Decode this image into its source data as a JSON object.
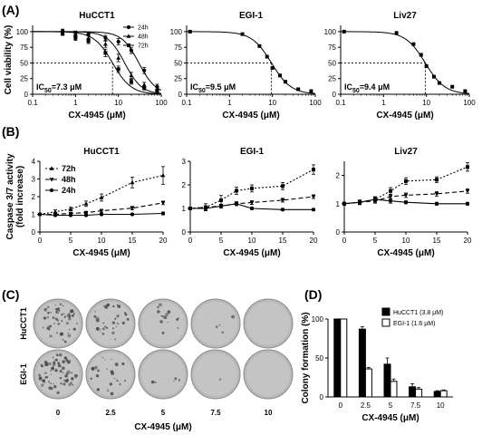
{
  "panels": {
    "A": "(A)",
    "B": "(B)",
    "C": "(C)",
    "D": "(D)"
  },
  "chart_data": [
    {
      "id": "A1",
      "type": "line",
      "title": "HuCCT1",
      "xlabel": "CX-4945 (μM)",
      "ylabel": "Cell viability (%)",
      "xscale": "log",
      "xlim": [
        0.1,
        100
      ],
      "ylim": [
        0,
        110
      ],
      "xticks": [
        {
          "v": 0.1,
          "t": "0.1"
        },
        {
          "v": 1,
          "t": "1"
        },
        {
          "v": 10,
          "t": "10"
        },
        {
          "v": 100,
          "t": "100"
        }
      ],
      "yticks": [
        0,
        25,
        50,
        75,
        100
      ],
      "annotation": {
        "pre": "IC",
        "sub": "50",
        "post": "=7.3 μM"
      },
      "ic50": 7.3,
      "legend": [
        "24h",
        "48h",
        "72h"
      ],
      "series": [
        {
          "name": "24h",
          "marker": "circle",
          "ic50": 30,
          "hill": 2.2,
          "x": [
            0.5,
            1,
            2,
            5,
            10,
            20,
            40,
            80
          ],
          "y": [
            101,
            98,
            96,
            90,
            84,
            70,
            38,
            12
          ],
          "err": [
            3,
            3,
            3,
            4,
            5,
            5,
            5,
            4
          ]
        },
        {
          "name": "48h",
          "marker": "tri",
          "ic50": 14,
          "hill": 2.2,
          "x": [
            0.5,
            1,
            2,
            5,
            10,
            20,
            40,
            80
          ],
          "y": [
            98,
            95,
            90,
            80,
            58,
            30,
            15,
            8
          ],
          "err": [
            3,
            4,
            4,
            5,
            6,
            5,
            4,
            3
          ]
        },
        {
          "name": "72h",
          "marker": "square",
          "ic50": 7.3,
          "hill": 2.0,
          "x": [
            0.5,
            1,
            2,
            5,
            10,
            20,
            40,
            80
          ],
          "y": [
            97,
            90,
            85,
            66,
            40,
            20,
            10,
            5
          ],
          "err": [
            3,
            4,
            4,
            6,
            5,
            4,
            3,
            2
          ]
        }
      ]
    },
    {
      "id": "A2",
      "type": "line",
      "title": "EGI-1",
      "xlabel": "CX-4945 (μM)",
      "ylabel": "",
      "xscale": "log",
      "xlim": [
        0.1,
        100
      ],
      "ylim": [
        0,
        110
      ],
      "xticks": [
        {
          "v": 0.1,
          "t": "0.1"
        },
        {
          "v": 1,
          "t": "1"
        },
        {
          "v": 10,
          "t": "10"
        },
        {
          "v": 100,
          "t": "100"
        }
      ],
      "yticks": [
        0,
        25,
        50,
        75,
        100
      ],
      "annotation": {
        "pre": "IC",
        "sub": "50",
        "post": "=9.5 μM"
      },
      "ic50": 9.5,
      "legend": [],
      "series": [
        {
          "name": "",
          "marker": "square",
          "ic50": 9.5,
          "hill": 1.9,
          "x": [
            0.12,
            2,
            5,
            7.5,
            10,
            15,
            20,
            40,
            80
          ],
          "y": [
            100,
            96,
            77,
            60,
            42,
            30,
            20,
            8,
            5
          ],
          "err": [
            0,
            0,
            0,
            0,
            0,
            0,
            0,
            0,
            0
          ]
        }
      ]
    },
    {
      "id": "A3",
      "type": "line",
      "title": "Liv27",
      "xlabel": "CX-4945 (μM)",
      "ylabel": "",
      "xscale": "log",
      "xlim": [
        0.1,
        100
      ],
      "ylim": [
        0,
        110
      ],
      "xticks": [
        {
          "v": 0.1,
          "t": "0.1"
        },
        {
          "v": 1,
          "t": "1"
        },
        {
          "v": 10,
          "t": "10"
        },
        {
          "v": 100,
          "t": "100"
        }
      ],
      "yticks": [
        0,
        25,
        50,
        75,
        100
      ],
      "annotation": {
        "pre": "IC",
        "sub": "50",
        "post": "=9.4 μM"
      },
      "ic50": 9.4,
      "legend": [],
      "series": [
        {
          "name": "",
          "marker": "square",
          "ic50": 9.4,
          "hill": 1.9,
          "x": [
            0.12,
            2,
            5,
            7.5,
            10,
            15,
            20,
            40,
            80
          ],
          "y": [
            100,
            98,
            80,
            63,
            45,
            28,
            18,
            12,
            5
          ],
          "err": [
            0,
            0,
            0,
            0,
            0,
            0,
            0,
            0,
            0
          ]
        }
      ]
    },
    {
      "id": "B1",
      "type": "line",
      "title": "HuCCT1",
      "xlabel": "CX-4945 (μM)",
      "ylabel": "Caspase 3/7 activity (fold increase)",
      "xscale": "linear",
      "xlim": [
        0,
        20
      ],
      "ylim": [
        0,
        4
      ],
      "xticks": [
        {
          "v": 0,
          "t": "0"
        },
        {
          "v": 5,
          "t": "5"
        },
        {
          "v": 10,
          "t": "10"
        },
        {
          "v": 15,
          "t": "15"
        },
        {
          "v": 20,
          "t": "20"
        }
      ],
      "yticks": [
        0,
        1,
        2,
        3,
        4
      ],
      "legend": [
        "72h",
        "48h",
        "24h"
      ],
      "series": [
        {
          "name": "72h",
          "marker": "tri",
          "dash": "2,2",
          "x": [
            0,
            2.5,
            5,
            7.5,
            10,
            15,
            20
          ],
          "y": [
            1.0,
            1.15,
            1.3,
            1.6,
            1.95,
            2.8,
            3.2
          ],
          "err": [
            0.05,
            0.1,
            0.1,
            0.15,
            0.2,
            0.3,
            0.5
          ]
        },
        {
          "name": "48h",
          "marker": "tridown",
          "dash": "5,3",
          "x": [
            0,
            2.5,
            5,
            7.5,
            10,
            15,
            20
          ],
          "y": [
            1.0,
            1.0,
            1.05,
            1.1,
            1.2,
            1.35,
            1.65
          ],
          "err": [
            0.05,
            0.05,
            0.05,
            0.05,
            0.08,
            0.1,
            0.1
          ]
        },
        {
          "name": "24h",
          "marker": "circle",
          "dash": "",
          "x": [
            0,
            2.5,
            5,
            7.5,
            10,
            15,
            20
          ],
          "y": [
            1.0,
            0.95,
            0.95,
            0.95,
            1.0,
            1.0,
            1.05
          ],
          "err": [
            0.05,
            0.05,
            0.05,
            0.05,
            0.05,
            0.05,
            0.08
          ]
        }
      ]
    },
    {
      "id": "B2",
      "type": "line",
      "title": "EGI-1",
      "xlabel": "CX-4945 (μM)",
      "ylabel": "",
      "xscale": "linear",
      "xlim": [
        0,
        20
      ],
      "ylim": [
        0,
        3
      ],
      "xticks": [
        {
          "v": 0,
          "t": "0"
        },
        {
          "v": 5,
          "t": "5"
        },
        {
          "v": 10,
          "t": "10"
        },
        {
          "v": 15,
          "t": "15"
        },
        {
          "v": 20,
          "t": "20"
        }
      ],
      "yticks": [
        0,
        1,
        2,
        3
      ],
      "legend": [],
      "series": [
        {
          "name": "72h",
          "marker": "square",
          "dash": "2,2",
          "x": [
            0,
            2.5,
            5,
            7.5,
            10,
            15,
            20
          ],
          "y": [
            1.0,
            1.05,
            1.35,
            1.75,
            1.85,
            1.95,
            2.65
          ],
          "err": [
            0.05,
            0.15,
            0.2,
            0.15,
            0.15,
            0.15,
            0.2
          ]
        },
        {
          "name": "48h",
          "marker": "tridown",
          "dash": "5,3",
          "x": [
            0,
            2.5,
            5,
            7.5,
            10,
            15,
            20
          ],
          "y": [
            1.0,
            1.05,
            1.1,
            1.2,
            1.25,
            1.35,
            1.5
          ],
          "err": [
            0.05,
            0.05,
            0.08,
            0.08,
            0.08,
            0.08,
            0.08
          ]
        },
        {
          "name": "24h",
          "marker": "circle",
          "dash": "",
          "x": [
            0,
            2.5,
            5,
            7.5,
            10,
            15,
            20
          ],
          "y": [
            1.0,
            1.0,
            1.1,
            1.2,
            1.0,
            0.95,
            0.95
          ],
          "err": [
            0.05,
            0.08,
            0.08,
            0.08,
            0.05,
            0.05,
            0.05
          ]
        }
      ]
    },
    {
      "id": "B3",
      "type": "line",
      "title": "Liv27",
      "xlabel": "CX-4945 (μM)",
      "ylabel": "",
      "xscale": "linear",
      "xlim": [
        0,
        20
      ],
      "ylim": [
        0,
        2.5
      ],
      "xticks": [
        {
          "v": 0,
          "t": "0"
        },
        {
          "v": 5,
          "t": "5"
        },
        {
          "v": 10,
          "t": "10"
        },
        {
          "v": 15,
          "t": "15"
        },
        {
          "v": 20,
          "t": "20"
        }
      ],
      "yticks": [
        0,
        1,
        2
      ],
      "legend": [],
      "series": [
        {
          "name": "72h",
          "marker": "square",
          "dash": "2,2",
          "x": [
            0,
            2.5,
            5,
            7.5,
            10,
            15,
            20
          ],
          "y": [
            1.0,
            1.05,
            1.15,
            1.45,
            1.8,
            1.85,
            2.3
          ],
          "err": [
            0.05,
            0.08,
            0.1,
            0.12,
            0.12,
            0.1,
            0.15
          ]
        },
        {
          "name": "48h",
          "marker": "tridown",
          "dash": "5,3",
          "x": [
            0,
            2.5,
            5,
            7.5,
            10,
            15,
            20
          ],
          "y": [
            1.0,
            1.05,
            1.1,
            1.25,
            1.3,
            1.35,
            1.45
          ],
          "err": [
            0.05,
            0.05,
            0.08,
            0.08,
            0.08,
            0.08,
            0.08
          ]
        },
        {
          "name": "24h",
          "marker": "circle",
          "dash": "",
          "x": [
            0,
            2.5,
            5,
            7.5,
            10,
            15,
            20
          ],
          "y": [
            1.0,
            1.05,
            1.15,
            1.1,
            1.05,
            1.0,
            1.0
          ],
          "err": [
            0.05,
            0.08,
            0.08,
            0.08,
            0.05,
            0.05,
            0.05
          ]
        }
      ]
    },
    {
      "id": "D",
      "type": "bar",
      "title": "",
      "xlabel": "CX-4945 (μM)",
      "ylabel": "Colony formation (%)",
      "categories": [
        "0",
        "2.5",
        "5",
        "7.5",
        "10"
      ],
      "ylim": [
        0,
        100
      ],
      "yticks": [
        0,
        50,
        100
      ],
      "series": [
        {
          "name": "HuCCT1 (3.8 μM)",
          "color": "#000000",
          "values": [
            100,
            87,
            42,
            13,
            7
          ],
          "err": [
            0,
            3,
            8,
            4,
            1
          ]
        },
        {
          "name": "EGI-1 (1.6 μM)",
          "color": "#ffffff",
          "values": [
            100,
            36,
            20,
            10,
            8
          ],
          "err": [
            0,
            2,
            3,
            2,
            1
          ]
        }
      ]
    }
  ],
  "dishes": {
    "rows": [
      "HuCCT1",
      "EGI-1"
    ],
    "concentrations": [
      "0",
      "2.5",
      "5",
      "7.5",
      "10"
    ],
    "xlabel": "CX-4945 (μM)",
    "density": [
      [
        0.55,
        0.35,
        0.15,
        0.04,
        0.0
      ],
      [
        0.75,
        0.25,
        0.06,
        0.01,
        0.0
      ]
    ]
  }
}
